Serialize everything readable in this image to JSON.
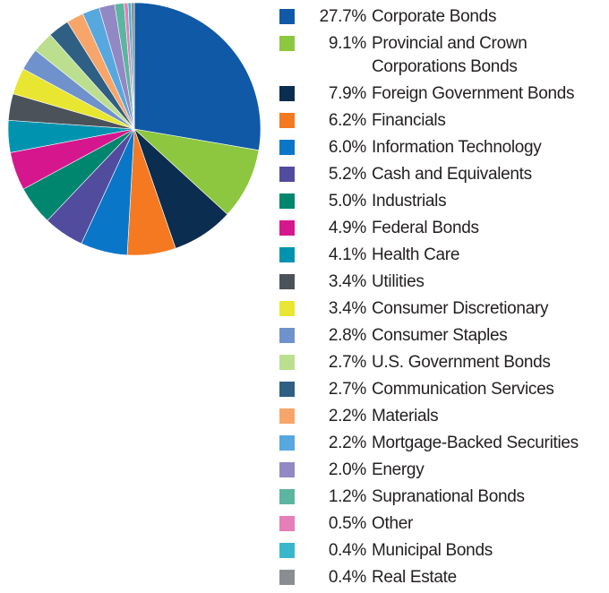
{
  "chart_data": {
    "type": "pie",
    "title": "",
    "legend_position": "right",
    "slices": [
      {
        "label": "Corporate Bonds",
        "value": 27.7,
        "value_label": "27.7%",
        "color": "#1059a6"
      },
      {
        "label": "Provincial and Crown Corporations Bonds",
        "value": 9.1,
        "value_label": "9.1%",
        "color": "#8dc63f"
      },
      {
        "label": "Foreign Government Bonds",
        "value": 7.9,
        "value_label": "7.9%",
        "color": "#0b2d4f"
      },
      {
        "label": "Financials",
        "value": 6.2,
        "value_label": "6.2%",
        "color": "#f47920"
      },
      {
        "label": "Information Technology",
        "value": 6.0,
        "value_label": "6.0%",
        "color": "#0a76c8"
      },
      {
        "label": "Cash and Equivalents",
        "value": 5.2,
        "value_label": "5.2%",
        "color": "#514c9e"
      },
      {
        "label": "Industrials",
        "value": 5.0,
        "value_label": "5.0%",
        "color": "#00856f"
      },
      {
        "label": "Federal Bonds",
        "value": 4.9,
        "value_label": "4.9%",
        "color": "#d6168d"
      },
      {
        "label": "Health Care",
        "value": 4.1,
        "value_label": "4.1%",
        "color": "#0093b0"
      },
      {
        "label": "Utilities",
        "value": 3.4,
        "value_label": "3.4%",
        "color": "#4b5259"
      },
      {
        "label": "Consumer Discretionary",
        "value": 3.4,
        "value_label": "3.4%",
        "color": "#e8e630"
      },
      {
        "label": "Consumer Staples",
        "value": 2.8,
        "value_label": "2.8%",
        "color": "#7092cc"
      },
      {
        "label": "U.S. Government Bonds",
        "value": 2.7,
        "value_label": "2.7%",
        "color": "#bcdf8f"
      },
      {
        "label": "Communication Services",
        "value": 2.7,
        "value_label": "2.7%",
        "color": "#2f5f82"
      },
      {
        "label": "Materials",
        "value": 2.2,
        "value_label": "2.2%",
        "color": "#f8a56a"
      },
      {
        "label": "Mortgage-Backed Securities",
        "value": 2.2,
        "value_label": "2.2%",
        "color": "#57a8df"
      },
      {
        "label": "Energy",
        "value": 2.0,
        "value_label": "2.0%",
        "color": "#9288c3"
      },
      {
        "label": "Supranational Bonds",
        "value": 1.2,
        "value_label": "1.2%",
        "color": "#5cb5a0"
      },
      {
        "label": "Other",
        "value": 0.5,
        "value_label": "0.5%",
        "color": "#e57eb9"
      },
      {
        "label": "Municipal Bonds",
        "value": 0.4,
        "value_label": "0.4%",
        "color": "#3ab6cc"
      },
      {
        "label": "Real Estate",
        "value": 0.4,
        "value_label": "0.4%",
        "color": "#8a8d91"
      }
    ]
  },
  "legend": {
    "wrapped_labels": {
      "1": [
        "Provincial and Crown",
        "Corporations Bonds"
      ]
    }
  }
}
